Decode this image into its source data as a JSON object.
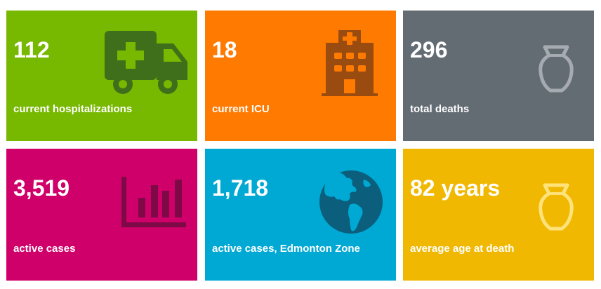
{
  "colors": {
    "green": "#77b800",
    "orange": "#ff7a00",
    "gray": "#636b73",
    "magenta": "#cf0069",
    "blue": "#00a8d4",
    "gold": "#f0b800"
  },
  "tiles": [
    {
      "value": "112",
      "label": "current hospitalizations",
      "icon": "ambulance-icon"
    },
    {
      "value": "18",
      "label": "current ICU",
      "icon": "hospital-building-icon"
    },
    {
      "value": "296",
      "label": "total deaths",
      "icon": "urn-icon"
    },
    {
      "value": "3,519",
      "label": "active cases",
      "icon": "bar-chart-icon"
    },
    {
      "value": "1,718",
      "label": "active cases, Edmonton Zone",
      "icon": "globe-icon"
    },
    {
      "value": "82 years",
      "label": "average age at death",
      "icon": "urn-icon"
    }
  ]
}
